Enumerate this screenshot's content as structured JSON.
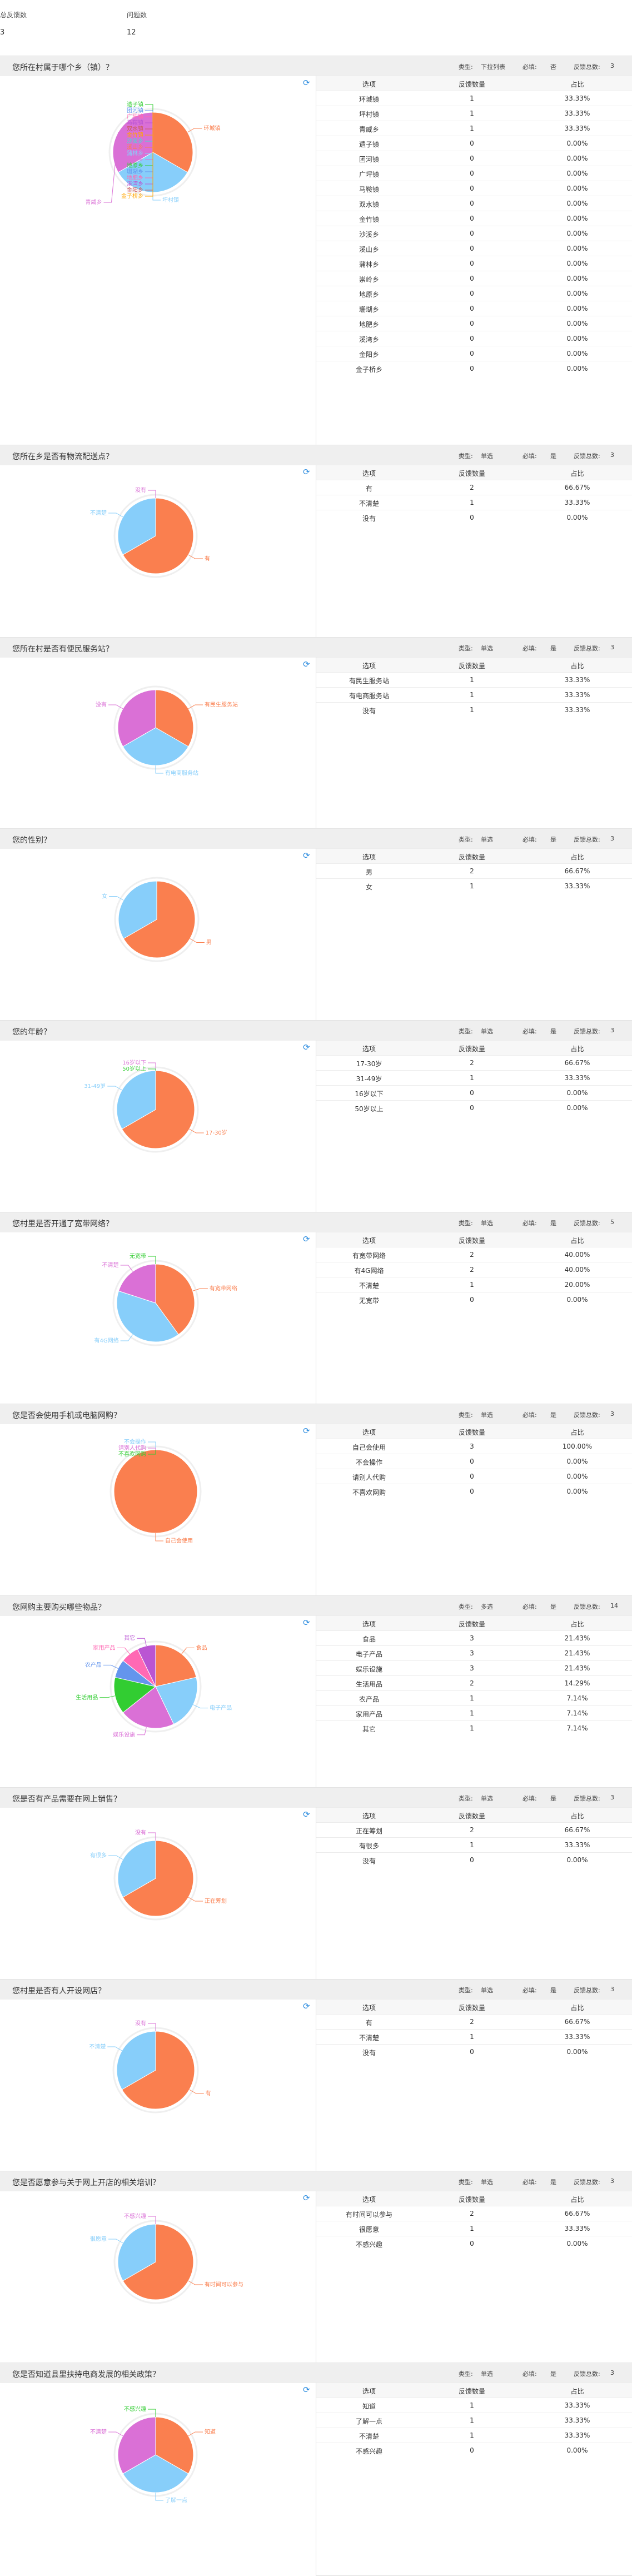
{
  "summary": {
    "responses_label": "总反馈数",
    "responses_value": "3",
    "questions_label": "问题数",
    "questions_value": "12"
  },
  "meta_labels": {
    "type": "类型:",
    "required": "必填:",
    "total": "反馈总数:"
  },
  "table_headers": {
    "option": "选项",
    "count": "反馈数量",
    "ratio": "占比"
  },
  "colors": [
    "#fa7f4f",
    "#87cefa",
    "#da70d6",
    "#32cd32",
    "#6495ed",
    "#ff69b4",
    "#ba55d3",
    "#cd5c5c",
    "#ffa500",
    "#40e0d0"
  ],
  "questions": [
    {
      "title": "您所在村属于哪个乡（镇）？",
      "type": "下拉列表",
      "required": "否",
      "total": "3",
      "rows": [
        {
          "option": "环城镇",
          "count": "1",
          "ratio": "33.33%"
        },
        {
          "option": "坪村镇",
          "count": "1",
          "ratio": "33.33%"
        },
        {
          "option": "青威乡",
          "count": "1",
          "ratio": "33.33%"
        },
        {
          "option": "遗子镇",
          "count": "0",
          "ratio": "0.00%"
        },
        {
          "option": "团河镇",
          "count": "0",
          "ratio": "0.00%"
        },
        {
          "option": "广坪镇",
          "count": "0",
          "ratio": "0.00%"
        },
        {
          "option": "马鞍镇",
          "count": "0",
          "ratio": "0.00%"
        },
        {
          "option": "双水镇",
          "count": "0",
          "ratio": "0.00%"
        },
        {
          "option": "金竹镇",
          "count": "0",
          "ratio": "0.00%"
        },
        {
          "option": "沙溪乡",
          "count": "0",
          "ratio": "0.00%"
        },
        {
          "option": "溪山乡",
          "count": "0",
          "ratio": "0.00%"
        },
        {
          "option": "蒲林乡",
          "count": "0",
          "ratio": "0.00%"
        },
        {
          "option": "崇岭乡",
          "count": "0",
          "ratio": "0.00%"
        },
        {
          "option": "地原乡",
          "count": "0",
          "ratio": "0.00%"
        },
        {
          "option": "珊瑚乡",
          "count": "0",
          "ratio": "0.00%"
        },
        {
          "option": "地肥乡",
          "count": "0",
          "ratio": "0.00%"
        },
        {
          "option": "溪湾乡",
          "count": "0",
          "ratio": "0.00%"
        },
        {
          "option": "金阳乡",
          "count": "0",
          "ratio": "0.00%"
        },
        {
          "option": "金子桥乡",
          "count": "0",
          "ratio": "0.00%"
        }
      ]
    },
    {
      "title": "您所在乡是否有物流配送点？",
      "type": "单选",
      "required": "是",
      "total": "3",
      "rows": [
        {
          "option": "有",
          "count": "2",
          "ratio": "66.67%"
        },
        {
          "option": "不清楚",
          "count": "1",
          "ratio": "33.33%"
        },
        {
          "option": "没有",
          "count": "0",
          "ratio": "0.00%"
        }
      ]
    },
    {
      "title": "您所在村是否有便民服务站？",
      "type": "单选",
      "required": "是",
      "total": "3",
      "rows": [
        {
          "option": "有民生服务站",
          "count": "1",
          "ratio": "33.33%"
        },
        {
          "option": "有电商服务站",
          "count": "1",
          "ratio": "33.33%"
        },
        {
          "option": "没有",
          "count": "1",
          "ratio": "33.33%"
        }
      ]
    },
    {
      "title": "您的性别？",
      "type": "单选",
      "required": "是",
      "total": "3",
      "rows": [
        {
          "option": "男",
          "count": "2",
          "ratio": "66.67%"
        },
        {
          "option": "女",
          "count": "1",
          "ratio": "33.33%"
        }
      ]
    },
    {
      "title": "您的年龄？",
      "type": "单选",
      "required": "是",
      "total": "3",
      "rows": [
        {
          "option": "17-30岁",
          "count": "2",
          "ratio": "66.67%"
        },
        {
          "option": "31-49岁",
          "count": "1",
          "ratio": "33.33%"
        },
        {
          "option": "16岁以下",
          "count": "0",
          "ratio": "0.00%"
        },
        {
          "option": "50岁以上",
          "count": "0",
          "ratio": "0.00%"
        }
      ]
    },
    {
      "title": "您村里是否开通了宽带网络？",
      "type": "单选",
      "required": "是",
      "total": "5",
      "rows": [
        {
          "option": "有宽带网络",
          "count": "2",
          "ratio": "40.00%"
        },
        {
          "option": "有4G网络",
          "count": "2",
          "ratio": "40.00%"
        },
        {
          "option": "不清楚",
          "count": "1",
          "ratio": "20.00%"
        },
        {
          "option": "无宽带",
          "count": "0",
          "ratio": "0.00%"
        }
      ]
    },
    {
      "title": "您是否会使用手机或电脑网购？",
      "type": "单选",
      "required": "是",
      "total": "3",
      "rows": [
        {
          "option": "自己会使用",
          "count": "3",
          "ratio": "100.00%"
        },
        {
          "option": "不会操作",
          "count": "0",
          "ratio": "0.00%"
        },
        {
          "option": "请别人代购",
          "count": "0",
          "ratio": "0.00%"
        },
        {
          "option": "不喜欢网购",
          "count": "0",
          "ratio": "0.00%"
        }
      ]
    },
    {
      "title": "您网购主要购买哪些物品？",
      "type": "多选",
      "required": "是",
      "total": "14",
      "rows": [
        {
          "option": "食品",
          "count": "3",
          "ratio": "21.43%"
        },
        {
          "option": "电子产品",
          "count": "3",
          "ratio": "21.43%"
        },
        {
          "option": "娱乐设施",
          "count": "3",
          "ratio": "21.43%"
        },
        {
          "option": "生活用品",
          "count": "2",
          "ratio": "14.29%"
        },
        {
          "option": "农产品",
          "count": "1",
          "ratio": "7.14%"
        },
        {
          "option": "家用产品",
          "count": "1",
          "ratio": "7.14%"
        },
        {
          "option": "其它",
          "count": "1",
          "ratio": "7.14%"
        }
      ]
    },
    {
      "title": "您是否有产品需要在网上销售？",
      "type": "单选",
      "required": "是",
      "total": "3",
      "rows": [
        {
          "option": "正在筹划",
          "count": "2",
          "ratio": "66.67%"
        },
        {
          "option": "有很多",
          "count": "1",
          "ratio": "33.33%"
        },
        {
          "option": "没有",
          "count": "0",
          "ratio": "0.00%"
        }
      ]
    },
    {
      "title": "您村里是否有人开设网店？",
      "type": "单选",
      "required": "是",
      "total": "3",
      "rows": [
        {
          "option": "有",
          "count": "2",
          "ratio": "66.67%"
        },
        {
          "option": "不清楚",
          "count": "1",
          "ratio": "33.33%"
        },
        {
          "option": "没有",
          "count": "0",
          "ratio": "0.00%"
        }
      ]
    },
    {
      "title": "您是否愿意参与关于网上开店的相关培训？",
      "type": "单选",
      "required": "是",
      "total": "3",
      "rows": [
        {
          "option": "有时间可以参与",
          "count": "2",
          "ratio": "66.67%"
        },
        {
          "option": "很愿意",
          "count": "1",
          "ratio": "33.33%"
        },
        {
          "option": "不感兴趣",
          "count": "0",
          "ratio": "0.00%"
        }
      ]
    },
    {
      "title": "您是否知道县里扶持电商发展的相关政策？",
      "type": "单选",
      "required": "是",
      "total": "3",
      "rows": [
        {
          "option": "知道",
          "count": "1",
          "ratio": "33.33%"
        },
        {
          "option": "了解一点",
          "count": "1",
          "ratio": "33.33%"
        },
        {
          "option": "不清楚",
          "count": "1",
          "ratio": "33.33%"
        },
        {
          "option": "不感兴趣",
          "count": "0",
          "ratio": "0.00%"
        }
      ]
    }
  ],
  "chart_data": [
    {
      "type": "pie",
      "categories": [
        "环城镇",
        "坪村镇",
        "青威乡",
        "遗子镇",
        "团河镇",
        "广坪镇",
        "马鞍镇",
        "双水镇",
        "金竹镇",
        "沙溪乡",
        "溪山乡",
        "蒲林乡",
        "崇岭乡",
        "地原乡",
        "珊瑚乡",
        "地肥乡",
        "溪湾乡",
        "金阳乡",
        "金子桥乡"
      ],
      "values": [
        1,
        1,
        1,
        0,
        0,
        0,
        0,
        0,
        0,
        0,
        0,
        0,
        0,
        0,
        0,
        0,
        0,
        0,
        0
      ]
    },
    {
      "type": "pie",
      "categories": [
        "有",
        "不清楚",
        "没有"
      ],
      "values": [
        2,
        1,
        0
      ]
    },
    {
      "type": "pie",
      "categories": [
        "有民生服务站",
        "有电商服务站",
        "没有"
      ],
      "values": [
        1,
        1,
        1
      ]
    },
    {
      "type": "pie",
      "categories": [
        "男",
        "女"
      ],
      "values": [
        2,
        1
      ]
    },
    {
      "type": "pie",
      "categories": [
        "17-30岁",
        "31-49岁",
        "16岁以下",
        "50岁以上"
      ],
      "values": [
        2,
        1,
        0,
        0
      ]
    },
    {
      "type": "pie",
      "categories": [
        "有宽带网络",
        "有4G网络",
        "不清楚",
        "无宽带"
      ],
      "values": [
        2,
        2,
        1,
        0
      ]
    },
    {
      "type": "pie",
      "categories": [
        "自己会使用",
        "不会操作",
        "请别人代购",
        "不喜欢网购"
      ],
      "values": [
        3,
        0,
        0,
        0
      ]
    },
    {
      "type": "pie",
      "categories": [
        "食品",
        "电子产品",
        "娱乐设施",
        "生活用品",
        "农产品",
        "家用产品",
        "其它"
      ],
      "values": [
        3,
        3,
        3,
        2,
        1,
        1,
        1
      ]
    },
    {
      "type": "pie",
      "categories": [
        "正在筹划",
        "有很多",
        "没有"
      ],
      "values": [
        2,
        1,
        0
      ]
    },
    {
      "type": "pie",
      "categories": [
        "有",
        "不清楚",
        "没有"
      ],
      "values": [
        2,
        1,
        0
      ]
    },
    {
      "type": "pie",
      "categories": [
        "有时间可以参与",
        "很愿意",
        "不感兴趣"
      ],
      "values": [
        2,
        1,
        0
      ]
    },
    {
      "type": "pie",
      "categories": [
        "知道",
        "了解一点",
        "不清楚",
        "不感兴趣"
      ],
      "values": [
        1,
        1,
        1,
        0
      ]
    }
  ]
}
